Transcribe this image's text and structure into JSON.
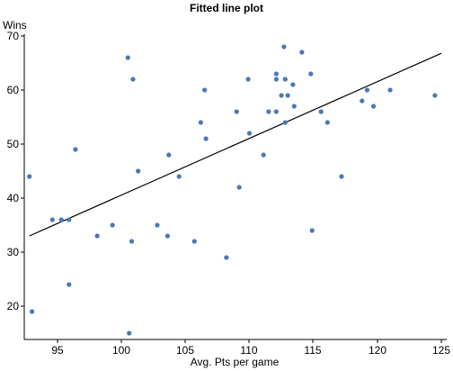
{
  "chart_data": {
    "type": "scatter",
    "title": "Fitted line plot",
    "xlabel": "Avg. Pts per game",
    "ylabel": "Wins",
    "xlim": [
      92.5,
      125.5
    ],
    "ylim": [
      14,
      73
    ],
    "xticks": [
      "95",
      "100",
      "105",
      "110",
      "115",
      "120",
      "125"
    ],
    "yticks": [
      "20",
      "30",
      "40",
      "50",
      "60",
      "70"
    ],
    "grid": false,
    "point_color": "#4a78b8",
    "line_color": "#000000",
    "fit_line": {
      "x": [
        92.8,
        125.0
      ],
      "y": [
        33.0,
        66.8
      ]
    },
    "points": [
      {
        "x": 92.8,
        "y": 44
      },
      {
        "x": 93.0,
        "y": 19
      },
      {
        "x": 94.6,
        "y": 36
      },
      {
        "x": 95.3,
        "y": 36
      },
      {
        "x": 95.9,
        "y": 36
      },
      {
        "x": 95.9,
        "y": 24
      },
      {
        "x": 96.4,
        "y": 49
      },
      {
        "x": 98.1,
        "y": 33
      },
      {
        "x": 99.3,
        "y": 35
      },
      {
        "x": 100.5,
        "y": 66
      },
      {
        "x": 100.6,
        "y": 15
      },
      {
        "x": 100.8,
        "y": 32
      },
      {
        "x": 100.9,
        "y": 62
      },
      {
        "x": 101.3,
        "y": 45
      },
      {
        "x": 102.8,
        "y": 35
      },
      {
        "x": 103.6,
        "y": 33
      },
      {
        "x": 103.7,
        "y": 48
      },
      {
        "x": 104.5,
        "y": 44
      },
      {
        "x": 105.7,
        "y": 32
      },
      {
        "x": 106.2,
        "y": 54
      },
      {
        "x": 106.5,
        "y": 60
      },
      {
        "x": 106.6,
        "y": 51
      },
      {
        "x": 108.2,
        "y": 29
      },
      {
        "x": 109.0,
        "y": 56
      },
      {
        "x": 109.2,
        "y": 42
      },
      {
        "x": 109.9,
        "y": 62
      },
      {
        "x": 110.0,
        "y": 52
      },
      {
        "x": 111.1,
        "y": 48
      },
      {
        "x": 111.5,
        "y": 56
      },
      {
        "x": 112.1,
        "y": 63
      },
      {
        "x": 112.1,
        "y": 62
      },
      {
        "x": 112.1,
        "y": 56
      },
      {
        "x": 112.5,
        "y": 59
      },
      {
        "x": 112.7,
        "y": 68
      },
      {
        "x": 112.8,
        "y": 62
      },
      {
        "x": 112.8,
        "y": 54
      },
      {
        "x": 113.0,
        "y": 59
      },
      {
        "x": 113.4,
        "y": 61
      },
      {
        "x": 113.5,
        "y": 57
      },
      {
        "x": 114.1,
        "y": 67
      },
      {
        "x": 114.8,
        "y": 63
      },
      {
        "x": 114.9,
        "y": 34
      },
      {
        "x": 115.6,
        "y": 56
      },
      {
        "x": 116.1,
        "y": 54
      },
      {
        "x": 117.2,
        "y": 44
      },
      {
        "x": 118.8,
        "y": 58
      },
      {
        "x": 119.2,
        "y": 60
      },
      {
        "x": 119.7,
        "y": 57
      },
      {
        "x": 121.0,
        "y": 60
      },
      {
        "x": 124.5,
        "y": 59
      }
    ]
  }
}
